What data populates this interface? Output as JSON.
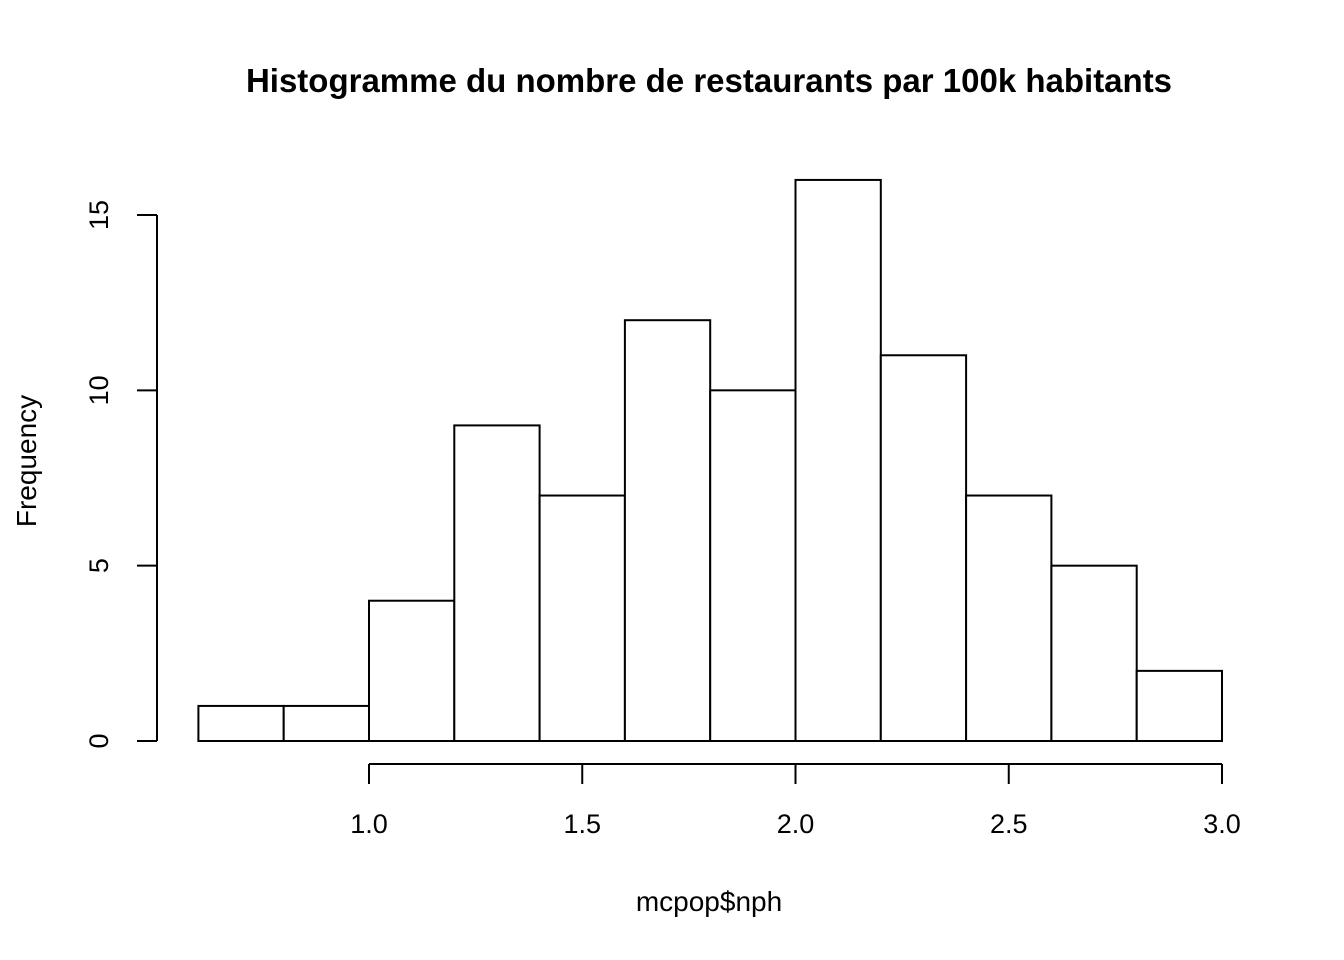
{
  "chart_data": {
    "type": "bar",
    "subtype": "histogram",
    "title": "Histogramme du nombre de restaurants par 100k habitants",
    "xlabel": "mcpop$nph",
    "ylabel": "Frequency",
    "bins": [
      {
        "from": 0.6,
        "to": 0.8,
        "count": 1
      },
      {
        "from": 0.8,
        "to": 1.0,
        "count": 1
      },
      {
        "from": 1.0,
        "to": 1.2,
        "count": 4
      },
      {
        "from": 1.2,
        "to": 1.4,
        "count": 9
      },
      {
        "from": 1.4,
        "to": 1.6,
        "count": 7
      },
      {
        "from": 1.6,
        "to": 1.8,
        "count": 12
      },
      {
        "from": 1.8,
        "to": 2.0,
        "count": 10
      },
      {
        "from": 2.0,
        "to": 2.2,
        "count": 16
      },
      {
        "from": 2.2,
        "to": 2.4,
        "count": 11
      },
      {
        "from": 2.4,
        "to": 2.6,
        "count": 7
      },
      {
        "from": 2.6,
        "to": 2.8,
        "count": 5
      },
      {
        "from": 2.8,
        "to": 3.0,
        "count": 2
      }
    ],
    "x_ticks": [
      "1.0",
      "1.5",
      "2.0",
      "2.5",
      "3.0"
    ],
    "y_ticks": [
      "0",
      "5",
      "10",
      "15"
    ],
    "xlim": [
      0.6,
      3.0
    ],
    "ylim": [
      0,
      16
    ],
    "grid": false,
    "bar_fill": "#ffffff",
    "bar_stroke": "#000000"
  }
}
